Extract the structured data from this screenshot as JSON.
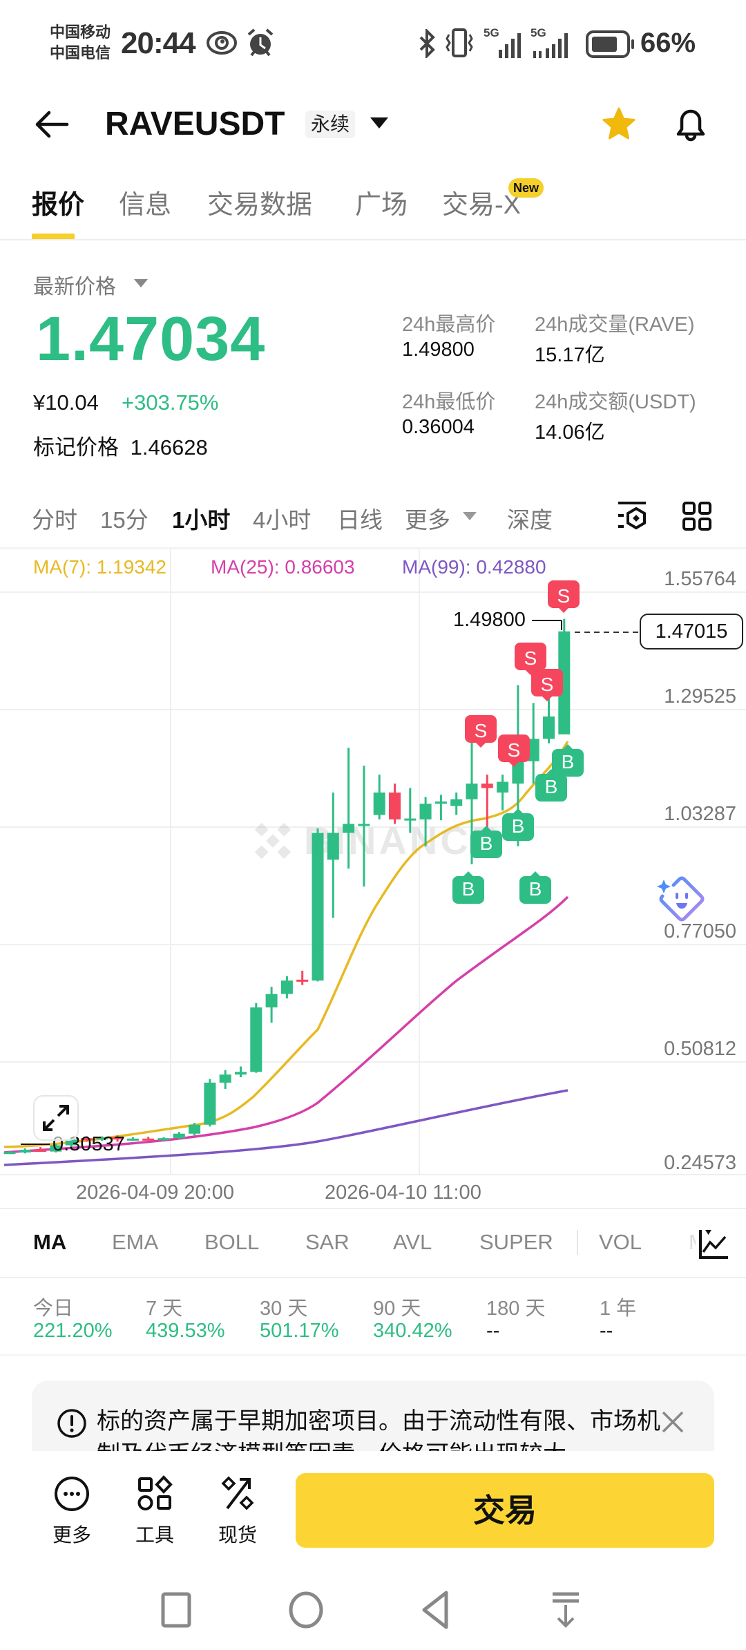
{
  "status_bar": {
    "carrier_1": "中国移动",
    "carrier_2": "中国电信",
    "time": "20:44",
    "network_1": "5G",
    "network_2": "5G",
    "battery_pct": "66%"
  },
  "header": {
    "pair": "RAVEUSDT",
    "contract_type": "永续",
    "favorite_color": "#F0B90B"
  },
  "tabs": [
    {
      "label": "报价",
      "active": true
    },
    {
      "label": "信息"
    },
    {
      "label": "交易数据"
    },
    {
      "label": "广场"
    },
    {
      "label": "交易-X",
      "badge": "New"
    }
  ],
  "price": {
    "latest_label": "最新价格",
    "last": "1.47034",
    "cny": "¥10.04",
    "change_pct": "+303.75%",
    "mark_label": "标记价格",
    "mark": "1.46628",
    "stats": {
      "high_label": "24h最高价",
      "high": "1.49800",
      "low_label": "24h最低价",
      "low": "0.36004",
      "vol_label": "24h成交量(RAVE)",
      "vol": "15.17亿",
      "turnover_label": "24h成交额(USDT)",
      "turnover": "14.06亿"
    }
  },
  "timeframes": [
    {
      "label": "分时"
    },
    {
      "label": "15分"
    },
    {
      "label": "1小时",
      "active": true
    },
    {
      "label": "4小时"
    },
    {
      "label": "日线"
    },
    {
      "label": "更多"
    },
    {
      "label": "深度"
    }
  ],
  "chart": {
    "ma7_label": "MA(7): 1.19342",
    "ma25_label": "MA(25): 0.86603",
    "ma99_label": "MA(99): 0.42880",
    "y_ticks": [
      "1.55764",
      "1.29525",
      "1.03287",
      "0.77050",
      "0.50812",
      "0.24573"
    ],
    "current_price": "1.47015",
    "high_marker": "1.49800",
    "low_marker": "0.30537",
    "x_ticks": [
      "2026-04-09 20:00",
      "2026-04-10 11:00"
    ],
    "watermark": "BINANCE",
    "colors": {
      "up": "#2EBD85",
      "down": "#F6465D",
      "ma7": "#E8B923",
      "ma25": "#D63FA8",
      "ma99": "#7E57C2"
    }
  },
  "chart_data": {
    "type": "candlestick",
    "title": "RAVEUSDT 1小时",
    "xlabel": "",
    "ylabel": "",
    "x_ticks": [
      "2026-04-09 20:00",
      "2026-04-10 11:00"
    ],
    "ylim": [
      0.24573,
      1.55764
    ],
    "y_ticks": [
      1.55764,
      1.29525,
      1.03287,
      0.7705,
      0.50812,
      0.24573
    ],
    "current_price": 1.47015,
    "period_high": 1.498,
    "period_low": 0.30537,
    "ohlc": [
      [
        0.305,
        0.31,
        0.303,
        0.307
      ],
      [
        0.306,
        0.315,
        0.304,
        0.312
      ],
      [
        0.312,
        0.318,
        0.308,
        0.31
      ],
      [
        0.308,
        0.325,
        0.306,
        0.322
      ],
      [
        0.322,
        0.34,
        0.318,
        0.335
      ],
      [
        0.338,
        0.342,
        0.33,
        0.336
      ],
      [
        0.336,
        0.342,
        0.332,
        0.34
      ],
      [
        0.34,
        0.344,
        0.33,
        0.335
      ],
      [
        0.335,
        0.34,
        0.332,
        0.337
      ],
      [
        0.337,
        0.341,
        0.333,
        0.334
      ],
      [
        0.334,
        0.34,
        0.332,
        0.338
      ],
      [
        0.338,
        0.352,
        0.336,
        0.348
      ],
      [
        0.348,
        0.372,
        0.344,
        0.368
      ],
      [
        0.368,
        0.47,
        0.364,
        0.462
      ],
      [
        0.462,
        0.49,
        0.448,
        0.48
      ],
      [
        0.48,
        0.498,
        0.474,
        0.486
      ],
      [
        0.486,
        0.64,
        0.484,
        0.63
      ],
      [
        0.63,
        0.676,
        0.596,
        0.66
      ],
      [
        0.66,
        0.7,
        0.65,
        0.69
      ],
      [
        0.692,
        0.712,
        0.68,
        0.69
      ],
      [
        0.69,
        1.03,
        0.688,
        1.02
      ],
      [
        0.96,
        1.11,
        0.83,
        1.02
      ],
      [
        1.02,
        1.21,
        0.94,
        1.04
      ],
      [
        1.04,
        1.17,
        0.9,
        1.04
      ],
      [
        1.06,
        1.15,
        1.05,
        1.11
      ],
      [
        1.11,
        1.13,
        1.04,
        1.05
      ],
      [
        1.05,
        1.12,
        1.02,
        1.052
      ],
      [
        1.05,
        1.1,
        0.99,
        1.085
      ],
      [
        1.085,
        1.105,
        1.048,
        1.09
      ],
      [
        1.08,
        1.11,
        1.06,
        1.095
      ],
      [
        1.095,
        1.28,
        0.95,
        1.13
      ],
      [
        1.13,
        1.15,
        1.02,
        1.12
      ],
      [
        1.11,
        1.15,
        1.07,
        1.134
      ],
      [
        1.13,
        1.35,
        0.99,
        1.185
      ],
      [
        1.18,
        1.31,
        1.13,
        1.23
      ],
      [
        1.23,
        1.38,
        1.22,
        1.28
      ],
      [
        1.24,
        1.498,
        1.24,
        1.47
      ]
    ],
    "series": [
      {
        "name": "MA(7)",
        "last": 1.19342
      },
      {
        "name": "MA(25)",
        "last": 0.86603
      },
      {
        "name": "MA(99)",
        "last": 0.4288
      }
    ],
    "markers": {
      "buy": 6,
      "sell": 5
    }
  },
  "indicators": [
    "MA",
    "EMA",
    "BOLL",
    "SAR",
    "AVL",
    "SUPER",
    "VOL",
    "M"
  ],
  "performance": [
    {
      "label": "今日",
      "value": "221.20%"
    },
    {
      "label": "7 天",
      "value": "439.53%"
    },
    {
      "label": "30 天",
      "value": "501.17%"
    },
    {
      "label": "90 天",
      "value": "340.42%"
    },
    {
      "label": "180 天",
      "value": "--"
    },
    {
      "label": "1 年",
      "value": "--"
    }
  ],
  "warning": {
    "text": "标的资产属于早期加密项目。由于流动性有限、市场机制及代币经济模型等因素，价格可能出现较大"
  },
  "bottom_bar": {
    "more_label": "更多",
    "tools_label": "工具",
    "spot_label": "现货",
    "trade_label": "交易"
  }
}
